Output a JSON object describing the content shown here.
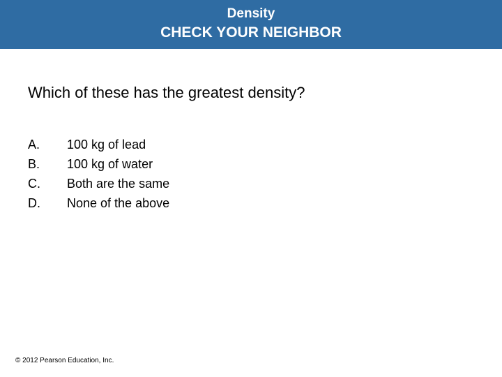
{
  "header": {
    "topic": "Density",
    "subtitle": "CHECK YOUR NEIGHBOR",
    "background_color": "#2f6ca3",
    "text_color": "#ffffff"
  },
  "question": "Which of these has the greatest density?",
  "choices": [
    {
      "letter": "A.",
      "text": "100 kg of lead"
    },
    {
      "letter": "B.",
      "text": "100 kg of water"
    },
    {
      "letter": "C.",
      "text": "Both are the same"
    },
    {
      "letter": "D.",
      "text": "None of the above"
    }
  ],
  "copyright": "© 2012 Pearson Education, Inc."
}
